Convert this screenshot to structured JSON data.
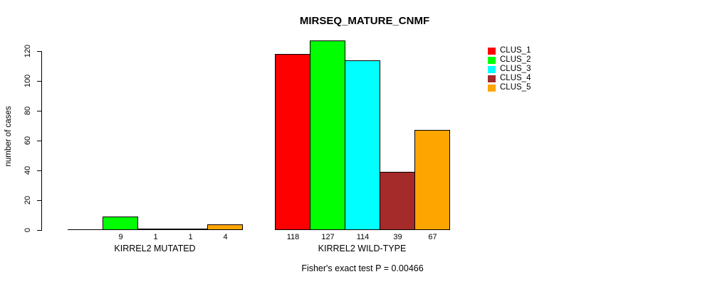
{
  "chart_data": {
    "type": "bar",
    "title": "MIRSEQ_MATURE_CNMF",
    "ylabel": "number of cases",
    "xlabel": "",
    "categories": [
      "KIRREL2 MUTATED",
      "KIRREL2 WILD-TYPE"
    ],
    "series": [
      {
        "name": "CLUS_1",
        "color": "#FF0000",
        "values": [
          0,
          118
        ]
      },
      {
        "name": "CLUS_2",
        "color": "#00FF00",
        "values": [
          9,
          127
        ]
      },
      {
        "name": "CLUS_3",
        "color": "#00FFFF",
        "values": [
          1,
          114
        ]
      },
      {
        "name": "CLUS_4",
        "color": "#A52A2A",
        "values": [
          1,
          39
        ]
      },
      {
        "name": "CLUS_5",
        "color": "#FFA500",
        "values": [
          4,
          67
        ]
      }
    ],
    "bar_value_labels": [
      [
        "",
        "9",
        "1",
        "1",
        "4"
      ],
      [
        "118",
        "127",
        "114",
        "39",
        "67"
      ]
    ],
    "yticks": [
      0,
      20,
      40,
      60,
      80,
      100,
      120
    ],
    "ylim": [
      0,
      130
    ],
    "grid": false,
    "legend_position": "right",
    "background": "#FFFFFF",
    "annotation": "Fisher's exact test P = 0.00466"
  }
}
